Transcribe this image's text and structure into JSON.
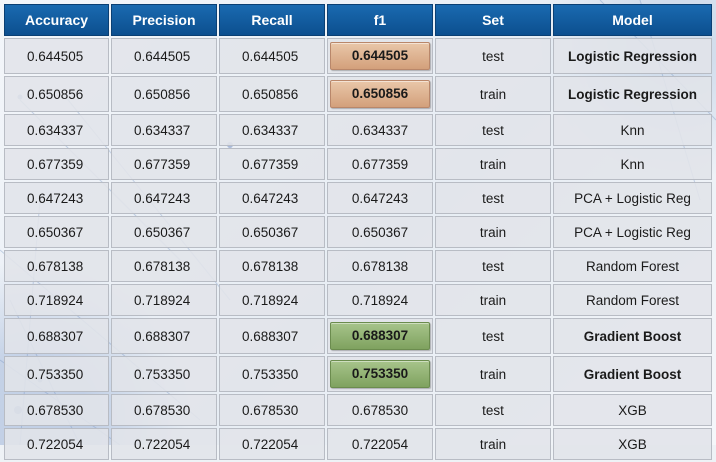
{
  "table": {
    "headers": [
      "Accuracy",
      "Precision",
      "Recall",
      "f1",
      "Set",
      "Model"
    ],
    "rows": [
      {
        "accuracy": "0.644505",
        "precision": "0.644505",
        "recall": "0.644505",
        "f1": "0.644505",
        "set": "test",
        "model": "Logistic Regression",
        "highlight": "orange",
        "bold_model": true
      },
      {
        "accuracy": "0.650856",
        "precision": "0.650856",
        "recall": "0.650856",
        "f1": "0.650856",
        "set": "train",
        "model": "Logistic Regression",
        "highlight": "orange",
        "bold_model": true
      },
      {
        "accuracy": "0.634337",
        "precision": "0.634337",
        "recall": "0.634337",
        "f1": "0.634337",
        "set": "test",
        "model": "Knn",
        "highlight": "",
        "bold_model": false
      },
      {
        "accuracy": "0.677359",
        "precision": "0.677359",
        "recall": "0.677359",
        "f1": "0.677359",
        "set": "train",
        "model": "Knn",
        "highlight": "",
        "bold_model": false
      },
      {
        "accuracy": "0.647243",
        "precision": "0.647243",
        "recall": "0.647243",
        "f1": "0.647243",
        "set": "test",
        "model": "PCA + Logistic Reg",
        "highlight": "",
        "bold_model": false
      },
      {
        "accuracy": "0.650367",
        "precision": "0.650367",
        "recall": "0.650367",
        "f1": "0.650367",
        "set": "train",
        "model": "PCA + Logistic Reg",
        "highlight": "",
        "bold_model": false
      },
      {
        "accuracy": "0.678138",
        "precision": "0.678138",
        "recall": "0.678138",
        "f1": "0.678138",
        "set": "test",
        "model": "Random Forest",
        "highlight": "",
        "bold_model": false
      },
      {
        "accuracy": "0.718924",
        "precision": "0.718924",
        "recall": "0.718924",
        "f1": "0.718924",
        "set": "train",
        "model": "Random Forest",
        "highlight": "",
        "bold_model": false
      },
      {
        "accuracy": "0.688307",
        "precision": "0.688307",
        "recall": "0.688307",
        "f1": "0.688307",
        "set": "test",
        "model": "Gradient Boost",
        "highlight": "green",
        "bold_model": true
      },
      {
        "accuracy": "0.753350",
        "precision": "0.753350",
        "recall": "0.753350",
        "f1": "0.753350",
        "set": "train",
        "model": "Gradient Boost",
        "highlight": "green",
        "bold_model": true
      },
      {
        "accuracy": "0.678530",
        "precision": "0.678530",
        "recall": "0.678530",
        "f1": "0.678530",
        "set": "test",
        "model": "XGB",
        "highlight": "",
        "bold_model": false
      },
      {
        "accuracy": "0.722054",
        "precision": "0.722054",
        "recall": "0.722054",
        "f1": "0.722054",
        "set": "train",
        "model": "XGB",
        "highlight": "",
        "bold_model": false
      }
    ]
  },
  "colors": {
    "header_bg": "#0c4f8f",
    "header_text": "#ffffff",
    "cell_bg": "#e1e4e9",
    "highlight_orange": "#d3a07b",
    "highlight_green": "#7fa25f"
  }
}
